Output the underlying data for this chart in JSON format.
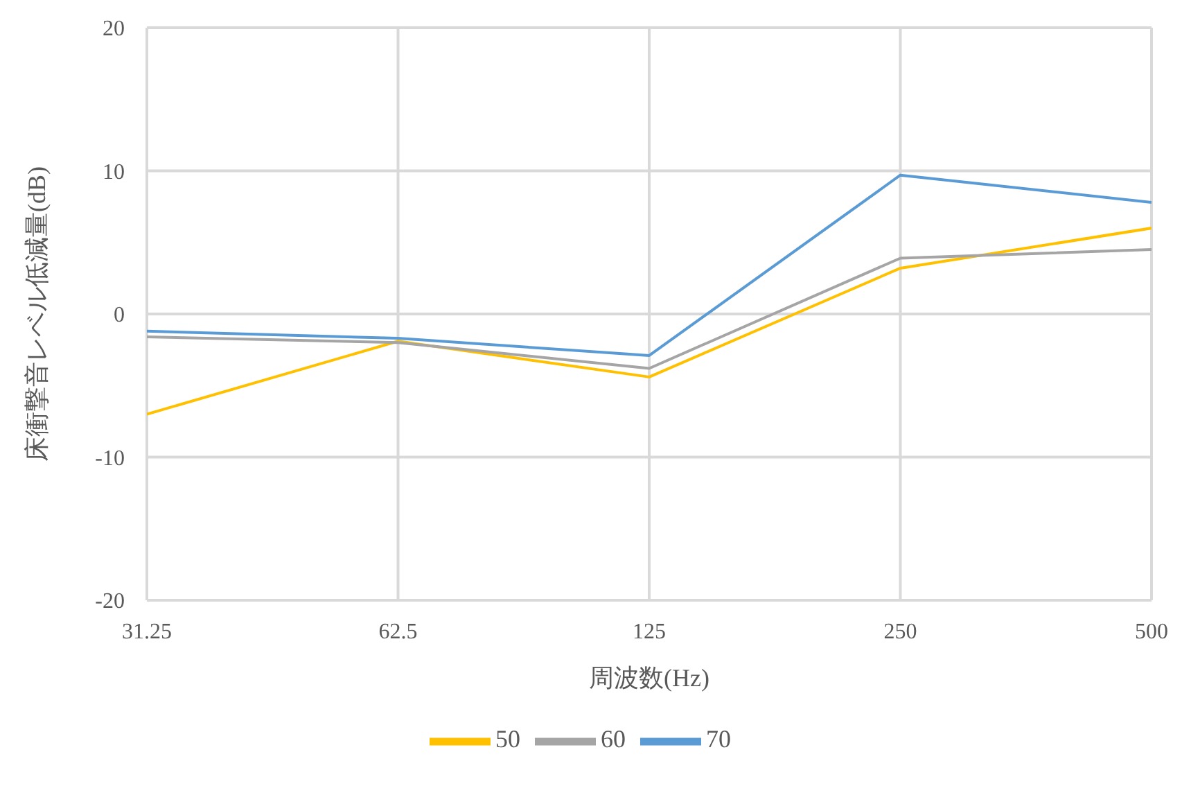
{
  "chart_data": {
    "type": "line",
    "xlabel": "周波数(Hz)",
    "ylabel": "床衝撃音レベル低減量(dB)",
    "categories": [
      "31.25",
      "62.5",
      "125",
      "250",
      "500"
    ],
    "series": [
      {
        "name": "50",
        "color": "#ffc000",
        "values": [
          -7.0,
          -1.9,
          -4.4,
          3.2,
          6.0
        ]
      },
      {
        "name": "60",
        "color": "#a5a5a5",
        "values": [
          -1.6,
          -2.0,
          -3.8,
          3.9,
          4.5
        ]
      },
      {
        "name": "70",
        "color": "#5b9bd5",
        "values": [
          -1.2,
          -1.7,
          -2.9,
          9.7,
          7.8
        ]
      }
    ],
    "ylim": [
      -20,
      20
    ],
    "yticks": [
      -20,
      -10,
      0,
      10,
      20
    ],
    "grid": true,
    "legend": "bottom",
    "marker": "none"
  }
}
